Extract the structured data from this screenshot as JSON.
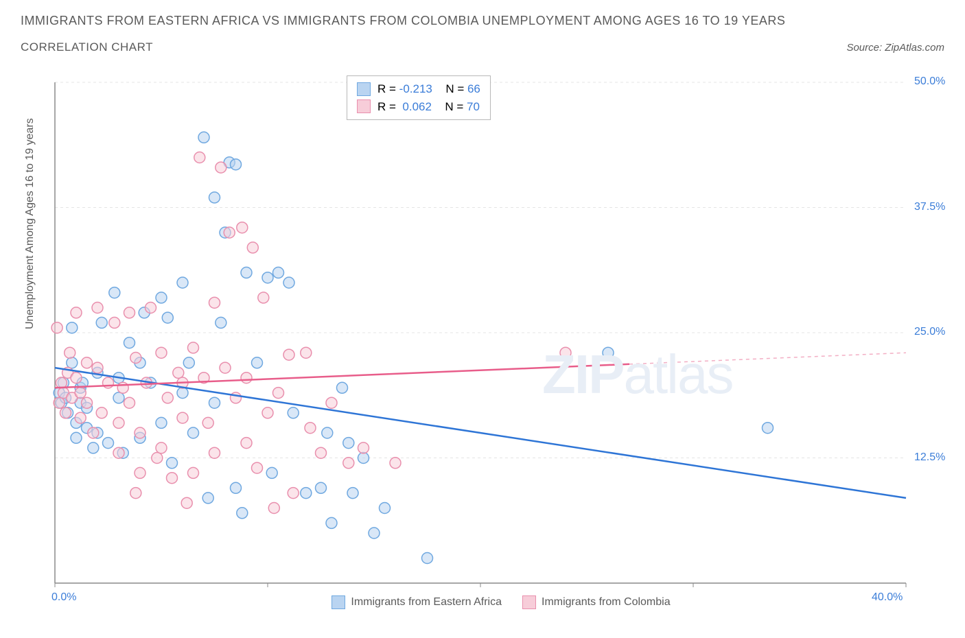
{
  "header": {
    "title_line1": "IMMIGRANTS FROM EASTERN AFRICA VS IMMIGRANTS FROM COLOMBIA UNEMPLOYMENT AMONG AGES 16 TO 19 YEARS",
    "title_line2": "CORRELATION CHART",
    "source": "Source: ZipAtlas.com"
  },
  "watermark": {
    "bold": "ZIP",
    "light": "atlas"
  },
  "chart": {
    "type": "scatter",
    "y_axis_label": "Unemployment Among Ages 16 to 19 years",
    "background_color": "#ffffff",
    "grid_color": "#e4e4e4",
    "axis_color": "#8a8a8a",
    "tick_label_color": "#3b7dd8",
    "xlim": [
      0,
      40
    ],
    "ylim": [
      0,
      50
    ],
    "xticks": [
      0,
      10,
      20,
      30,
      40
    ],
    "xtick_labels": [
      "0.0%",
      "",
      "",
      "",
      "40.0%"
    ],
    "yticks": [
      12.5,
      25.0,
      37.5,
      50.0
    ],
    "ytick_labels": [
      "12.5%",
      "25.0%",
      "37.5%",
      "50.0%"
    ],
    "marker_radius": 8,
    "marker_stroke_width": 1.5,
    "series": [
      {
        "name": "Immigrants from Eastern Africa",
        "fill": "#b9d4f1",
        "stroke": "#6fa8e0",
        "swatch_border": "#6fa8e0",
        "line_color": "#2e75d6",
        "trend": {
          "y_at_x0": 21.5,
          "y_at_xmax": 8.5,
          "x_solid_end": 40
        },
        "stats": {
          "R": "-0.213",
          "N": "66"
        },
        "points": [
          [
            0.2,
            19.0
          ],
          [
            0.3,
            18.0
          ],
          [
            0.4,
            20.0
          ],
          [
            0.5,
            18.5
          ],
          [
            0.6,
            17.0
          ],
          [
            0.8,
            22.0
          ],
          [
            0.8,
            25.5
          ],
          [
            1.0,
            16.0
          ],
          [
            1.0,
            14.5
          ],
          [
            1.2,
            18.0
          ],
          [
            1.2,
            19.5
          ],
          [
            1.3,
            20.0
          ],
          [
            1.5,
            15.5
          ],
          [
            1.5,
            17.5
          ],
          [
            2.0,
            21.0
          ],
          [
            2.0,
            15.0
          ],
          [
            2.2,
            26.0
          ],
          [
            2.5,
            14.0
          ],
          [
            2.8,
            29.0
          ],
          [
            3.0,
            18.5
          ],
          [
            3.0,
            20.5
          ],
          [
            3.2,
            13.0
          ],
          [
            3.5,
            24.0
          ],
          [
            4.0,
            22.0
          ],
          [
            4.0,
            14.5
          ],
          [
            4.2,
            27.0
          ],
          [
            4.5,
            20.0
          ],
          [
            5.0,
            28.5
          ],
          [
            5.0,
            16.0
          ],
          [
            5.3,
            26.5
          ],
          [
            5.5,
            12.0
          ],
          [
            6.0,
            19.0
          ],
          [
            6.0,
            30.0
          ],
          [
            6.3,
            22.0
          ],
          [
            6.5,
            15.0
          ],
          [
            7.0,
            44.5
          ],
          [
            7.2,
            8.5
          ],
          [
            7.5,
            38.5
          ],
          [
            7.5,
            18.0
          ],
          [
            7.8,
            26.0
          ],
          [
            8.0,
            35.0
          ],
          [
            8.2,
            42.0
          ],
          [
            8.5,
            41.8
          ],
          [
            8.5,
            9.5
          ],
          [
            8.8,
            7.0
          ],
          [
            9.0,
            31.0
          ],
          [
            9.5,
            22.0
          ],
          [
            10.0,
            30.5
          ],
          [
            10.2,
            11.0
          ],
          [
            10.5,
            31.0
          ],
          [
            11.0,
            30.0
          ],
          [
            11.2,
            17.0
          ],
          [
            11.8,
            9.0
          ],
          [
            12.5,
            9.5
          ],
          [
            12.8,
            15.0
          ],
          [
            13.0,
            6.0
          ],
          [
            13.5,
            19.5
          ],
          [
            13.8,
            14.0
          ],
          [
            14.0,
            9.0
          ],
          [
            14.5,
            12.5
          ],
          [
            15.0,
            5.0
          ],
          [
            15.5,
            7.5
          ],
          [
            17.5,
            2.5
          ],
          [
            26.0,
            23.0
          ],
          [
            33.5,
            15.5
          ],
          [
            1.8,
            13.5
          ]
        ]
      },
      {
        "name": "Immigrants from Colombia",
        "fill": "#f7cdd9",
        "stroke": "#e98fad",
        "swatch_border": "#e98fad",
        "line_color": "#e85d8a",
        "trend": {
          "y_at_x0": 19.5,
          "y_at_xmax": 23.0,
          "x_solid_end": 27
        },
        "stats": {
          "R": "0.062",
          "N": "70"
        },
        "points": [
          [
            0.1,
            25.5
          ],
          [
            0.2,
            18.0
          ],
          [
            0.3,
            20.0
          ],
          [
            0.4,
            19.0
          ],
          [
            0.5,
            17.0
          ],
          [
            0.6,
            21.0
          ],
          [
            0.7,
            23.0
          ],
          [
            0.8,
            18.5
          ],
          [
            1.0,
            20.5
          ],
          [
            1.0,
            27.0
          ],
          [
            1.2,
            19.0
          ],
          [
            1.2,
            16.5
          ],
          [
            1.5,
            22.0
          ],
          [
            1.5,
            18.0
          ],
          [
            1.8,
            15.0
          ],
          [
            2.0,
            21.5
          ],
          [
            2.0,
            27.5
          ],
          [
            2.2,
            17.0
          ],
          [
            2.5,
            20.0
          ],
          [
            2.8,
            26.0
          ],
          [
            3.0,
            16.0
          ],
          [
            3.0,
            13.0
          ],
          [
            3.2,
            19.5
          ],
          [
            3.5,
            27.0
          ],
          [
            3.5,
            18.0
          ],
          [
            3.8,
            22.5
          ],
          [
            4.0,
            15.0
          ],
          [
            4.0,
            11.0
          ],
          [
            4.3,
            20.0
          ],
          [
            4.5,
            27.5
          ],
          [
            4.8,
            12.5
          ],
          [
            5.0,
            23.0
          ],
          [
            5.0,
            13.5
          ],
          [
            5.3,
            18.5
          ],
          [
            5.5,
            10.5
          ],
          [
            5.8,
            21.0
          ],
          [
            6.0,
            16.5
          ],
          [
            6.0,
            20.0
          ],
          [
            6.2,
            8.0
          ],
          [
            6.5,
            11.0
          ],
          [
            6.5,
            23.5
          ],
          [
            6.8,
            42.5
          ],
          [
            7.0,
            20.5
          ],
          [
            7.2,
            16.0
          ],
          [
            7.5,
            28.0
          ],
          [
            7.5,
            13.0
          ],
          [
            7.8,
            41.5
          ],
          [
            8.0,
            21.5
          ],
          [
            8.2,
            35.0
          ],
          [
            8.5,
            18.5
          ],
          [
            8.8,
            35.5
          ],
          [
            9.0,
            20.5
          ],
          [
            9.0,
            14.0
          ],
          [
            9.3,
            33.5
          ],
          [
            9.5,
            11.5
          ],
          [
            9.8,
            28.5
          ],
          [
            10.0,
            17.0
          ],
          [
            10.3,
            7.5
          ],
          [
            10.5,
            19.0
          ],
          [
            11.0,
            22.8
          ],
          [
            11.2,
            9.0
          ],
          [
            11.8,
            23.0
          ],
          [
            12.0,
            15.5
          ],
          [
            12.5,
            13.0
          ],
          [
            13.0,
            18.0
          ],
          [
            13.8,
            12.0
          ],
          [
            14.5,
            13.5
          ],
          [
            16.0,
            12.0
          ],
          [
            24.0,
            23.0
          ],
          [
            3.8,
            9.0
          ]
        ]
      }
    ]
  },
  "labels": {
    "R_prefix": "R = ",
    "N_prefix": "N = "
  }
}
